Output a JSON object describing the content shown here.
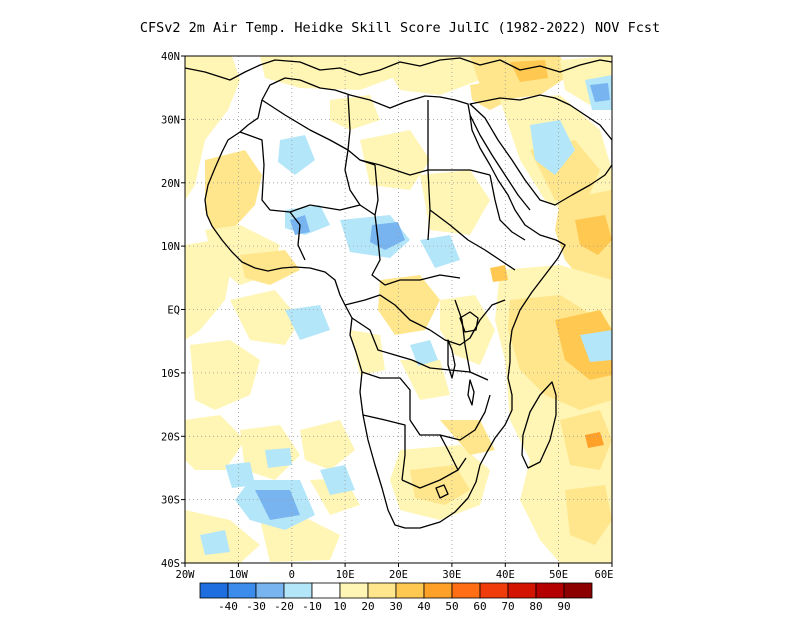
{
  "title": "CFSv2  2m Air Temp. Heidke Skill Score JulIC (1982-2022) NOV Fcst",
  "map": {
    "lat_labels": [
      "40N",
      "30N",
      "20N",
      "10N",
      "EQ",
      "10S",
      "20S",
      "30S",
      "40S"
    ],
    "lon_labels": [
      "20W",
      "10W",
      "0",
      "10E",
      "20E",
      "30E",
      "40E",
      "50E",
      "60E"
    ],
    "grid": "dotted",
    "region": "Africa"
  },
  "colorbar": {
    "labels": [
      "-40",
      "-30",
      "-20",
      "-10",
      "10",
      "20",
      "30",
      "40",
      "50",
      "60",
      "70",
      "80",
      "90"
    ],
    "colors": [
      "#1e6ee0",
      "#3c8ceb",
      "#78b4f0",
      "#b4e6fa",
      "#ffffff",
      "#fff5b4",
      "#ffe68c",
      "#ffc850",
      "#ffa028",
      "#ff6e14",
      "#f03c0a",
      "#d21400",
      "#b40000",
      "#8c0000"
    ]
  }
}
